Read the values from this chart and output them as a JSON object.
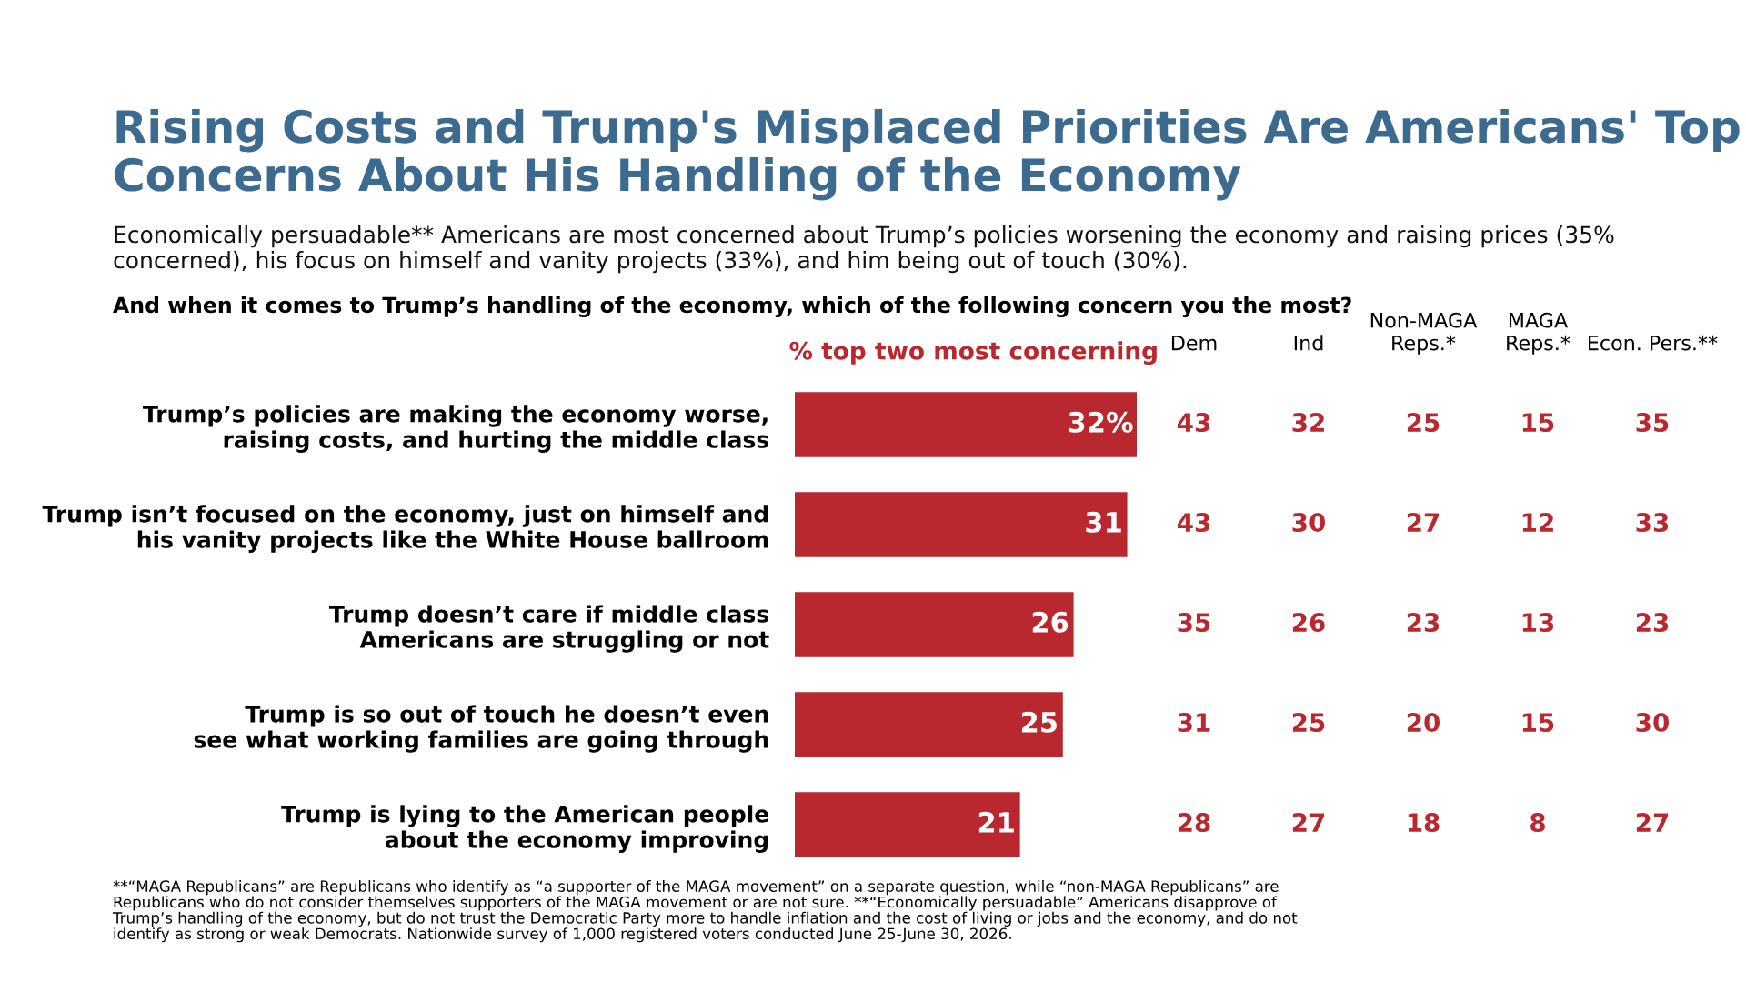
{
  "chart_data": [
    {
      "type": "bar",
      "orientation": "horizontal",
      "title": "Rising Costs and Trump's Misplaced Priorities Are Americans' Top\nConcerns About His Handling of the Economy",
      "subtitle": "Economically persuadable** Americans are most concerned about Trump’s policies worsening the economy and raising prices (35%\nconcerned), his focus on himself and vanity projects (33%), and him being out of touch (30%).",
      "annotations": [
        "And when it comes to Trump’s handling of the economy, which of the following concern you the most?",
        "**“MAGA Republicans” are Republicans who identify as “a supporter of the MAGA movement” on a separate question, while “non-MAGA Republicans” are\nRepublicans who do not consider themselves supporters of the MAGA movement or are not sure. **“Economically persuadable” Americans disapprove of\nTrump’s handling of the economy, but do not trust the Democratic Party more to handle inflation and the cost of living or jobs and the economy, and do not\nidentify as strong or weak Democrats. Nationwide survey of 1,000 registered voters conducted June 25-June 30, 2026."
      ],
      "categories": [
        "Trump’s policies are making the economy worse,\nraising costs, and hurting the middle class",
        "Trump isn’t focused on the economy, just on himself and\nhis vanity projects like the White House ballroom",
        "Trump doesn’t care if middle class\nAmericans are struggling or not",
        "Trump is so out of touch he doesn’t even\nsee what working families are going through",
        "Trump is lying to the American people\nabout the economy improving"
      ],
      "series": [
        {
          "name": "% top two most concerning",
          "color": "#b8282e",
          "values": [
            32,
            31,
            26,
            25,
            21
          ],
          "value_labels": [
            "32%",
            "31",
            "26",
            "25",
            "21"
          ]
        }
      ],
      "data_labels": true,
      "tick_labels": "y"
    },
    {
      "type": "heatmap",
      "categories": [
        "Dem",
        "Ind",
        "Non-MAGA\nReps.*",
        "MAGA\nReps.*",
        "Econ. Pers.**"
      ],
      "y_categories": [
        null,
        null,
        null,
        null,
        null
      ],
      "cells": [
        [
          43,
          32,
          25,
          15,
          35
        ],
        [
          43,
          30,
          27,
          12,
          33
        ],
        [
          35,
          26,
          23,
          13,
          23
        ],
        [
          31,
          25,
          20,
          15,
          30
        ],
        [
          28,
          27,
          18,
          8,
          27
        ]
      ],
      "data_labels": true
    }
  ]
}
